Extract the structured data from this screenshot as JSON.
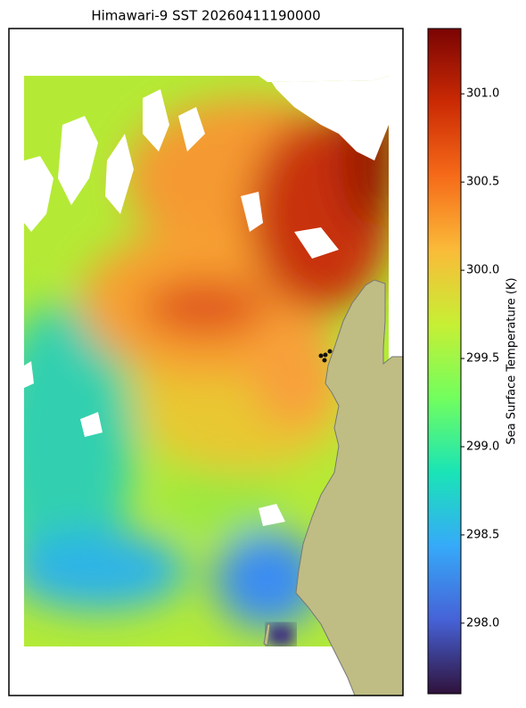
{
  "chart_data": {
    "type": "colormap-map",
    "title": "Himawari-9 SST 20260411190000",
    "colorbar_label": "Sea Surface Temperature (K)",
    "clim": [
      297.6,
      301.37
    ],
    "cticks": [
      {
        "value": 298,
        "label": "298.0"
      },
      {
        "value": 298.5,
        "label": "298.5"
      },
      {
        "value": 299,
        "label": "299.0"
      },
      {
        "value": 299.5,
        "label": "299.5"
      },
      {
        "value": 300,
        "label": "300.0"
      },
      {
        "value": 300.5,
        "label": "300.5"
      },
      {
        "value": 301,
        "label": "301.0"
      }
    ],
    "colors": [
      "#30123b",
      "#4662d7",
      "#36aaf9",
      "#1ae4b6",
      "#72fe5e",
      "#c7ef34",
      "#fabb39",
      "#f66b19",
      "#cb2a04",
      "#7a0403"
    ]
  }
}
